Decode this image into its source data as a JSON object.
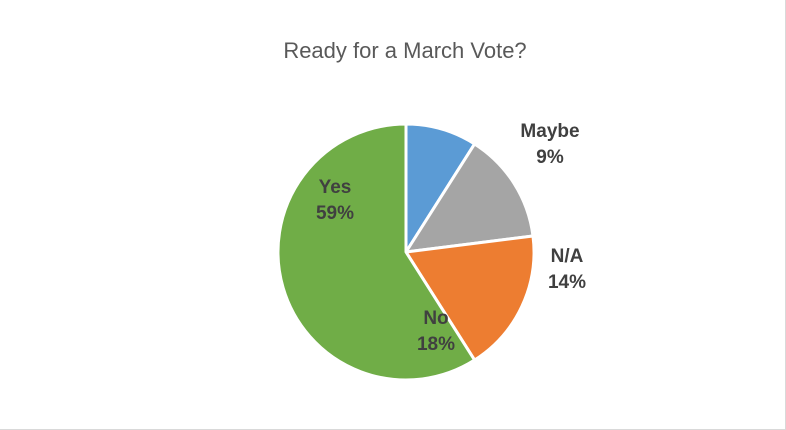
{
  "chart_data": {
    "type": "pie",
    "title": "Ready for a March Vote?",
    "categories": [
      "Maybe",
      "N/A",
      "No",
      "Yes"
    ],
    "values": [
      9,
      14,
      18,
      59
    ],
    "labels": [
      "9%",
      "14%",
      "18%",
      "59%"
    ],
    "colors": [
      "#5b9bd5",
      "#a5a5a5",
      "#ed7d31",
      "#70ad47"
    ],
    "legend": "none",
    "start_angle_deg": 0,
    "direction": "clockwise"
  }
}
